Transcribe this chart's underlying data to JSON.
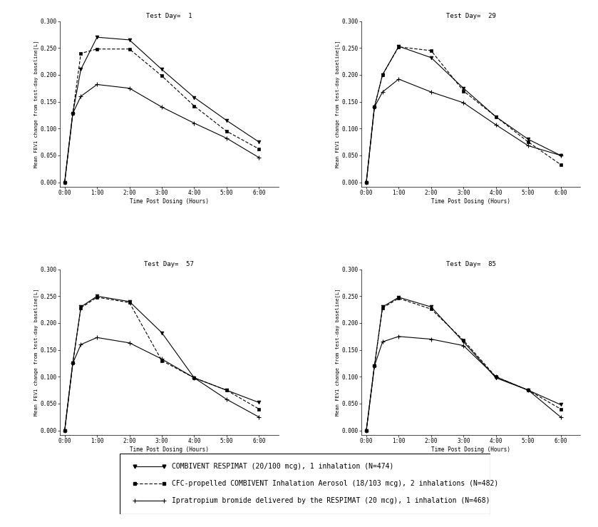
{
  "time_points": [
    0.0,
    0.25,
    0.5,
    1.0,
    2.0,
    3.0,
    4.0,
    5.0,
    6.0
  ],
  "time_ticks": [
    0,
    1,
    2,
    3,
    4,
    5,
    6
  ],
  "time_tick_labels": [
    "0:00",
    "1:00",
    "2:00",
    "3:00",
    "4:00",
    "5:00",
    "6:00"
  ],
  "day1": {
    "title": "Test Day=  1",
    "series1": [
      0.0,
      0.128,
      0.21,
      0.27,
      0.265,
      0.21,
      0.158,
      0.115,
      0.075
    ],
    "series2": [
      0.0,
      0.128,
      0.24,
      0.248,
      0.248,
      0.198,
      0.142,
      0.095,
      0.062
    ],
    "series3": [
      0.0,
      0.128,
      0.16,
      0.182,
      0.175,
      0.14,
      0.11,
      0.082,
      0.046
    ],
    "ylim": [
      0.0,
      0.3
    ],
    "yticks": [
      0.0,
      0.05,
      0.1,
      0.15,
      0.2,
      0.25,
      0.3
    ]
  },
  "day29": {
    "title": "Test Day=  29",
    "series1": [
      0.0,
      0.14,
      0.2,
      0.253,
      0.232,
      0.175,
      0.122,
      0.08,
      0.05
    ],
    "series2": [
      0.0,
      0.14,
      0.2,
      0.252,
      0.245,
      0.17,
      0.122,
      0.075,
      0.033
    ],
    "series3": [
      0.0,
      0.14,
      0.168,
      0.192,
      0.168,
      0.148,
      0.107,
      0.068,
      0.05
    ],
    "ylim": [
      0.0,
      0.3
    ],
    "yticks": [
      0.0,
      0.05,
      0.1,
      0.15,
      0.2,
      0.25,
      0.3
    ]
  },
  "day57": {
    "title": "Test Day=  57",
    "series1": [
      0.0,
      0.125,
      0.23,
      0.25,
      0.24,
      0.182,
      0.098,
      0.075,
      0.052
    ],
    "series2": [
      0.0,
      0.125,
      0.228,
      0.248,
      0.238,
      0.13,
      0.098,
      0.075,
      0.04
    ],
    "series3": [
      0.0,
      0.125,
      0.16,
      0.173,
      0.163,
      0.133,
      0.098,
      0.058,
      0.025
    ],
    "ylim": [
      0.0,
      0.3
    ],
    "yticks": [
      0.0,
      0.05,
      0.1,
      0.15,
      0.2,
      0.25,
      0.3
    ]
  },
  "day85": {
    "title": "Test Day=  85",
    "series1": [
      0.0,
      0.12,
      0.23,
      0.248,
      0.23,
      0.165,
      0.098,
      0.075,
      0.048
    ],
    "series2": [
      0.0,
      0.12,
      0.228,
      0.246,
      0.226,
      0.168,
      0.1,
      0.075,
      0.04
    ],
    "series3": [
      0.0,
      0.12,
      0.165,
      0.175,
      0.17,
      0.158,
      0.1,
      0.075,
      0.025
    ],
    "ylim": [
      0.0,
      0.3
    ],
    "yticks": [
      0.0,
      0.05,
      0.1,
      0.15,
      0.2,
      0.25,
      0.3
    ]
  },
  "legend_labels": [
    "COMBIVENT RESPIMAT (20/100 mcg), 1 inhalation (N=474)",
    "CFC-propelled COMBIVENT Inhalation Aerosol (18/103 mcg), 2 inhalations (N=482)",
    "Ipratropium bromide delivered by the RESPIMAT (20 mcg), 1 inhalation (N=468)"
  ],
  "xlabel": "Time Post Dosing (Hours)",
  "ylabel": "Mean FEV1 change from test-day baseline[L]",
  "background_color": "#ffffff"
}
